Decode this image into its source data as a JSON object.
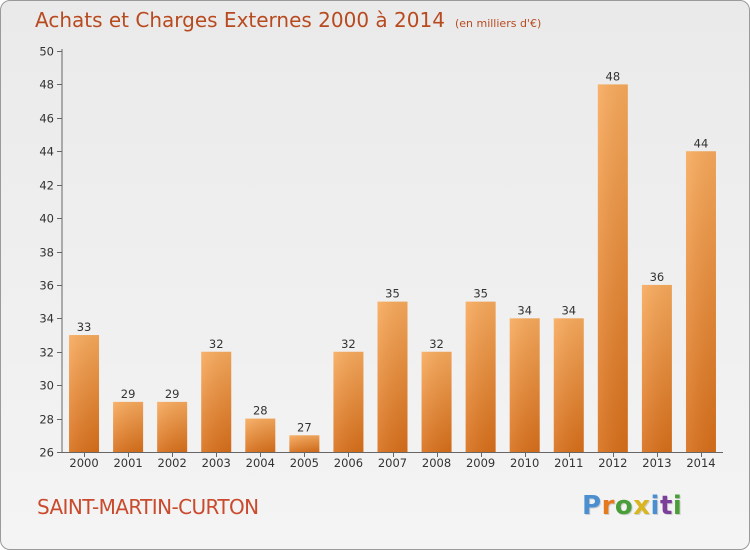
{
  "chart_data": {
    "type": "bar",
    "title": "Achats et Charges Externes 2000 à 2014",
    "subtitle": "(en milliers d'€)",
    "categories": [
      "2000",
      "2001",
      "2002",
      "2003",
      "2004",
      "2005",
      "2006",
      "2007",
      "2008",
      "2009",
      "2010",
      "2011",
      "2012",
      "2013",
      "2014"
    ],
    "values": [
      33,
      29,
      29,
      32,
      28,
      27,
      32,
      35,
      32,
      35,
      34,
      34,
      48,
      36,
      44
    ],
    "ylim": [
      26,
      50
    ],
    "yticks": [
      26,
      28,
      30,
      32,
      34,
      36,
      38,
      40,
      42,
      44,
      46,
      48,
      50
    ],
    "xlabel": "",
    "ylabel": "",
    "grid": false,
    "colors": {
      "bar_light": "#f8aa5c",
      "bar_dark": "#d86f1a",
      "text": "#333333",
      "title": "#b84a20"
    }
  },
  "footer": {
    "commune": "SAINT-MARTIN-CURTON",
    "logo": "Proxiti",
    "logo_colors": [
      "#4c8fd0",
      "#e4791d",
      "#4a9e3a",
      "#d9b620",
      "#4c8fd0",
      "#7a3f98",
      "#4a9e3a"
    ]
  }
}
